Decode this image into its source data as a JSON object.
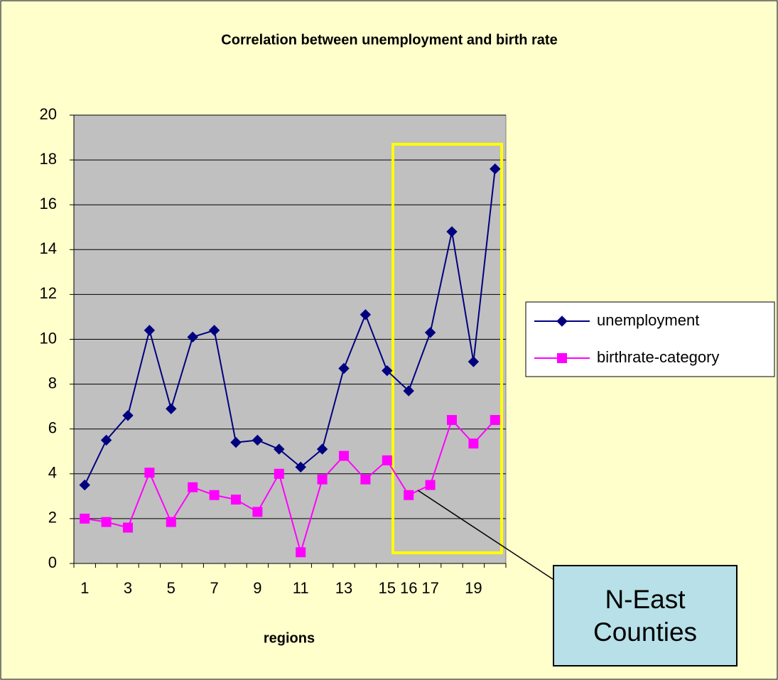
{
  "chart_data": {
    "type": "line",
    "title": "Correlation between unemployment and birth rate",
    "x_label": "regions",
    "categories": [
      "1",
      null,
      "3",
      null,
      "5",
      null,
      "7",
      null,
      "9",
      null,
      "11",
      null,
      "13",
      null,
      "15",
      "16",
      "17",
      null,
      "19",
      null
    ],
    "series": [
      {
        "name": "unemployment",
        "color": "#000080",
        "marker": "diamond",
        "values": [
          3.5,
          5.5,
          6.6,
          10.4,
          6.9,
          10.1,
          10.4,
          5.4,
          5.5,
          5.1,
          4.3,
          5.1,
          8.7,
          11.1,
          8.6,
          7.7,
          10.3,
          14.8,
          9.0,
          17.6
        ]
      },
      {
        "name": "birthrate-category",
        "color": "#ff00ff",
        "marker": "square",
        "values": [
          2.0,
          1.85,
          1.6,
          4.05,
          1.85,
          3.4,
          3.05,
          2.85,
          2.3,
          4.0,
          0.5,
          3.75,
          4.8,
          3.75,
          4.6,
          3.05,
          3.5,
          6.4,
          5.35,
          6.4
        ]
      }
    ],
    "ylim": [
      0,
      20
    ],
    "yticks": [
      0,
      2,
      4,
      6,
      8,
      10,
      12,
      14,
      16,
      18,
      20
    ],
    "grid": true,
    "legend": "right",
    "annotation": "N-East Counties"
  }
}
